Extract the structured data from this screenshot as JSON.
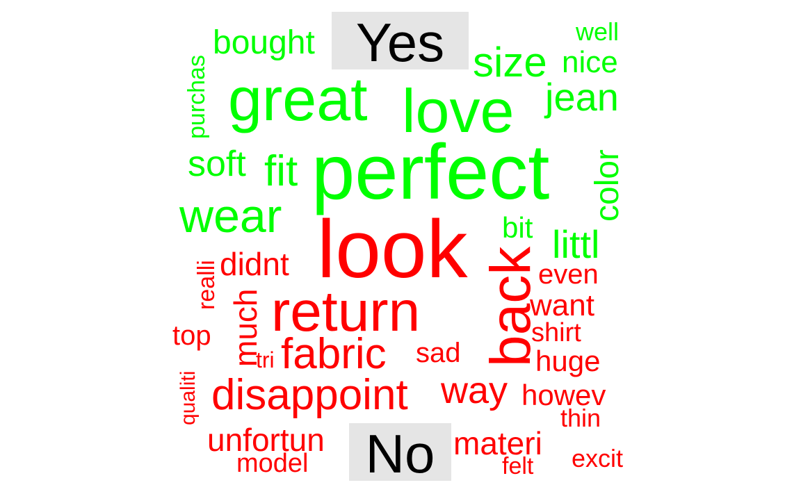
{
  "chart_data": {
    "type": "comparison word cloud",
    "groups": [
      {
        "name": "Yes",
        "color": "#00ff00",
        "words": [
          "perfect",
          "great",
          "love",
          "wear",
          "fit",
          "soft",
          "size",
          "jean",
          "bought",
          "color",
          "littl",
          "nice",
          "purchas",
          "bit",
          "well"
        ]
      },
      {
        "name": "No",
        "color": "#ff0000",
        "words": [
          "look",
          "return",
          "back",
          "disappoint",
          "fabric",
          "way",
          "didnt",
          "much",
          "unfortun",
          "materi",
          "howev",
          "want",
          "huge",
          "even",
          "top",
          "shirt",
          "sad",
          "model",
          "thin",
          "excit",
          "realli",
          "qualiti",
          "tri",
          "felt"
        ]
      }
    ],
    "label_background": "#e5e5e5"
  }
}
